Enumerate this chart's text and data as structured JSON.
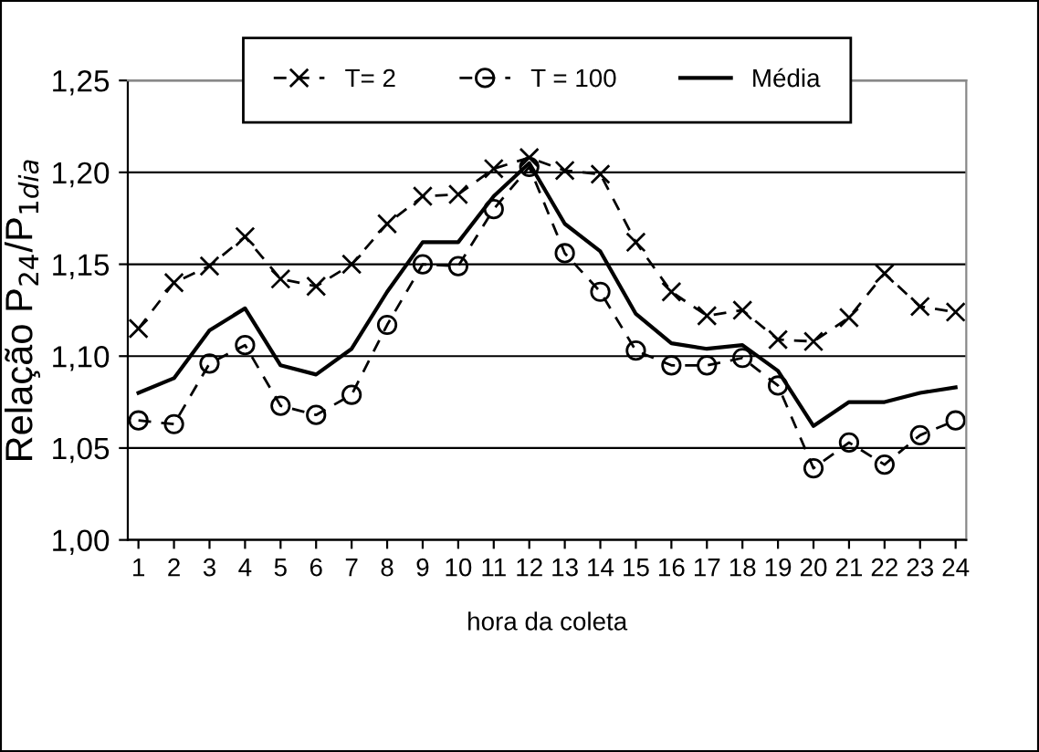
{
  "chart_data": {
    "type": "line",
    "xlabel": "hora da coleta",
    "ylabel": "Relação P$_{24}$/P$_{1dia}$",
    "categories": [
      "1",
      "2",
      "3",
      "4",
      "5",
      "6",
      "7",
      "8",
      "9",
      "10",
      "11",
      "12",
      "13",
      "14",
      "15",
      "16",
      "17",
      "18",
      "19",
      "20",
      "21",
      "22",
      "23",
      "24"
    ],
    "series": [
      {
        "name": "T= 2",
        "color": "#000000",
        "marker": "cross",
        "line_style": "dashed",
        "values": [
          1.115,
          1.14,
          1.149,
          1.165,
          1.142,
          1.138,
          1.15,
          1.172,
          1.187,
          1.188,
          1.202,
          1.208,
          1.201,
          1.199,
          1.162,
          1.135,
          1.122,
          1.125,
          1.109,
          1.108,
          1.121,
          1.145,
          1.127,
          1.124
        ]
      },
      {
        "name": "T = 100",
        "color": "#000000",
        "marker": "circle",
        "line_style": "dashed",
        "values": [
          1.065,
          1.063,
          1.096,
          1.106,
          1.073,
          1.068,
          1.079,
          1.117,
          1.15,
          1.149,
          1.18,
          1.203,
          1.156,
          1.135,
          1.103,
          1.095,
          1.095,
          1.099,
          1.084,
          1.039,
          1.053,
          1.041,
          1.057,
          1.065
        ]
      },
      {
        "name": "Média",
        "color": "#000000",
        "marker": "none",
        "line_style": "solid",
        "values": [
          1.08,
          1.088,
          1.114,
          1.126,
          1.095,
          1.09,
          1.104,
          1.135,
          1.162,
          1.162,
          1.187,
          1.205,
          1.172,
          1.157,
          1.123,
          1.107,
          1.104,
          1.106,
          1.092,
          1.062,
          1.075,
          1.075,
          1.08,
          1.083
        ]
      }
    ],
    "ylim": [
      1.0,
      1.25
    ],
    "yticks": [
      {
        "value": 1.0,
        "label": "1,00"
      },
      {
        "value": 1.05,
        "label": "1,05"
      },
      {
        "value": 1.1,
        "label": "1,10"
      },
      {
        "value": 1.15,
        "label": "1,15"
      },
      {
        "value": 1.2,
        "label": "1,20"
      },
      {
        "value": 1.25,
        "label": "1,25"
      }
    ],
    "grid": "y",
    "legend": "top"
  }
}
